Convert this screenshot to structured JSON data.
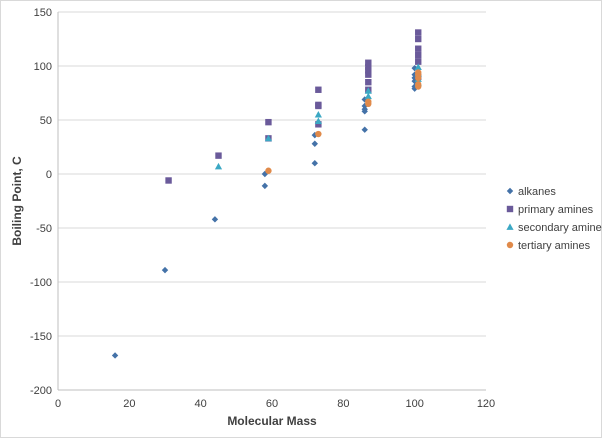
{
  "chart_data": {
    "type": "scatter",
    "title": "",
    "xlabel": "Molecular Mass",
    "ylabel": "Boiling Point, C",
    "xlim": [
      0,
      120
    ],
    "ylim": [
      -200,
      150
    ],
    "x_ticks": [
      0,
      20,
      40,
      60,
      80,
      100,
      120
    ],
    "y_ticks": [
      150,
      100,
      50,
      0,
      -50,
      -100,
      -150,
      -200
    ],
    "grid": "horizontal",
    "legend_position": "right",
    "series": [
      {
        "name": "alkanes",
        "marker": "diamond",
        "color": "#4472A8",
        "points": [
          [
            16,
            -168
          ],
          [
            30,
            -89
          ],
          [
            44,
            -42
          ],
          [
            58,
            -11
          ],
          [
            58,
            0
          ],
          [
            72,
            10
          ],
          [
            72,
            28
          ],
          [
            72,
            36
          ],
          [
            86,
            41
          ],
          [
            86,
            58
          ],
          [
            86,
            60
          ],
          [
            86,
            63
          ],
          [
            86,
            69
          ],
          [
            100,
            79
          ],
          [
            100,
            81
          ],
          [
            100,
            86
          ],
          [
            100,
            89
          ],
          [
            100,
            92
          ],
          [
            100,
            98
          ]
        ]
      },
      {
        "name": "primary amines",
        "marker": "square",
        "color": "#6A5A9A",
        "points": [
          [
            31,
            -6
          ],
          [
            45,
            17
          ],
          [
            59,
            33
          ],
          [
            59,
            48
          ],
          [
            73,
            46
          ],
          [
            73,
            63
          ],
          [
            73,
            64
          ],
          [
            73,
            78
          ],
          [
            87,
            78
          ],
          [
            87,
            85
          ],
          [
            87,
            92
          ],
          [
            87,
            96
          ],
          [
            87,
            99
          ],
          [
            87,
            103
          ],
          [
            101,
            90
          ],
          [
            101,
            104
          ],
          [
            101,
            110
          ],
          [
            101,
            116
          ],
          [
            101,
            125
          ],
          [
            101,
            131
          ]
        ]
      },
      {
        "name": "secondary amines",
        "marker": "triangle",
        "color": "#3BA8C4",
        "points": [
          [
            45,
            7
          ],
          [
            59,
            33
          ],
          [
            73,
            49
          ],
          [
            73,
            55
          ],
          [
            87,
            72
          ],
          [
            87,
            77
          ],
          [
            101,
            84
          ],
          [
            101,
            88
          ],
          [
            101,
            93
          ],
          [
            101,
            99
          ]
        ]
      },
      {
        "name": "tertiary amines",
        "marker": "circle",
        "color": "#E08A4A",
        "points": [
          [
            59,
            3
          ],
          [
            73,
            37
          ],
          [
            87,
            65
          ],
          [
            87,
            67
          ],
          [
            101,
            81
          ],
          [
            101,
            83
          ],
          [
            101,
            89
          ],
          [
            101,
            92
          ],
          [
            101,
            94
          ]
        ]
      }
    ]
  }
}
